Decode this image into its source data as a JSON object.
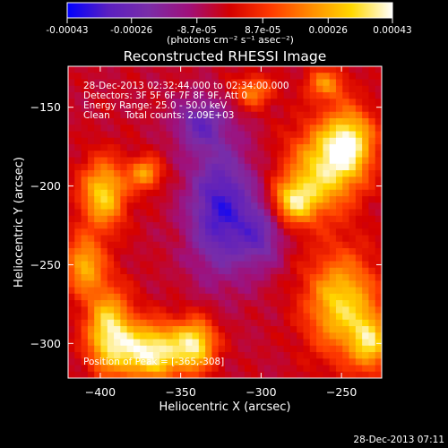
{
  "chart_data": {
    "type": "heatmap",
    "title": "Reconstructed RHESSI Image",
    "xlabel": "Heliocentric X (arcsec)",
    "ylabel": "Heliocentric Y (arcsec)",
    "xlim": [
      -420,
      -225
    ],
    "ylim": [
      -322,
      -124
    ],
    "xticks": [
      -400,
      -350,
      -300,
      -250
    ],
    "yticks": [
      -150,
      -200,
      -250,
      -300
    ],
    "colorbar": {
      "min": -0.00043,
      "max": 0.00043,
      "ticks": [
        -0.00043,
        -0.00026,
        -8.7e-05,
        8.7e-05,
        0.00026,
        0.00043
      ],
      "tick_labels": [
        "-0.00043",
        "-0.00026",
        "-8.7e-05",
        "8.7e-05",
        "0.00026",
        "0.00043"
      ],
      "units_label": "(photons cm⁻² s⁻¹ asec⁻²)",
      "colors": [
        "#0000ff",
        "#5a1fc0",
        "#7a2da8",
        "#a0107a",
        "#d40000",
        "#ff3a00",
        "#ff8c00",
        "#ffd800",
        "#ffffff"
      ]
    },
    "annotations": [
      "28-Dec-2013 02:32:44.000 to 02:34:00.000",
      "Detectors: 3F 5F 6F 7F 8F 9F, Att 0",
      "Energy Range: 25.0 - 50.0 keV",
      "Clean     Total counts: 2.09E+03"
    ],
    "peak": {
      "label": "Position of Peak = [-365,-308]",
      "x": -365,
      "y": -308
    },
    "grid_cells": 48,
    "hot_regions": [
      {
        "x": -262,
        "y": -190,
        "w": 22,
        "h": 28,
        "level": 0.8
      },
      {
        "x": -245,
        "y": -172,
        "w": 16,
        "h": 22,
        "level": 0.85
      },
      {
        "x": -280,
        "y": -210,
        "w": 14,
        "h": 14,
        "level": 0.75
      },
      {
        "x": -250,
        "y": -275,
        "w": 22,
        "h": 32,
        "level": 0.85
      },
      {
        "x": -232,
        "y": -300,
        "w": 12,
        "h": 18,
        "level": 0.7
      },
      {
        "x": -368,
        "y": -305,
        "w": 24,
        "h": 18,
        "level": 1.05
      },
      {
        "x": -395,
        "y": -290,
        "w": 14,
        "h": 26,
        "level": 0.85
      },
      {
        "x": -340,
        "y": -300,
        "w": 12,
        "h": 16,
        "level": 0.75
      },
      {
        "x": -398,
        "y": -205,
        "w": 14,
        "h": 22,
        "level": 0.85
      },
      {
        "x": -372,
        "y": -192,
        "w": 10,
        "h": 10,
        "level": 0.65
      },
      {
        "x": -410,
        "y": -250,
        "w": 12,
        "h": 18,
        "level": 0.7
      },
      {
        "x": -305,
        "y": -140,
        "w": 12,
        "h": 10,
        "level": 0.55
      },
      {
        "x": -260,
        "y": -135,
        "w": 12,
        "h": 10,
        "level": 0.55
      }
    ],
    "cold_regions": [
      {
        "x": -325,
        "y": -215,
        "w": 20,
        "h": 40,
        "level": -0.75
      },
      {
        "x": -338,
        "y": -160,
        "w": 16,
        "h": 16,
        "level": -0.5
      },
      {
        "x": -300,
        "y": -230,
        "w": 14,
        "h": 22,
        "level": -0.45
      }
    ]
  },
  "footer": {
    "timestamp": "28-Dec-2013 07:11"
  }
}
